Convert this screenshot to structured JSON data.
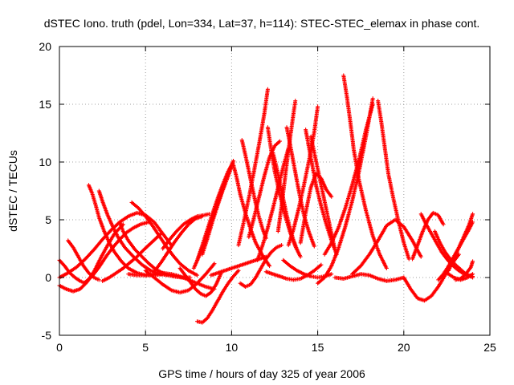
{
  "chart_data": {
    "type": "scatter",
    "title": "dSTEC Iono. truth (pdel, Lon=334, Lat=37, h=114): STEC-STEC_elemax in phase cont.",
    "xlabel": "GPS time / hours of day 325 of year 2006",
    "ylabel": "dSTEC  / TECUs",
    "xlim": [
      0,
      25
    ],
    "ylim": [
      -5,
      20
    ],
    "x_ticks": [
      0,
      5,
      10,
      15,
      20,
      25
    ],
    "y_ticks": [
      -5,
      0,
      5,
      10,
      15,
      20
    ],
    "x_tick_labels": [
      "0",
      "5",
      "10",
      "15",
      "20",
      "25"
    ],
    "y_tick_labels": [
      "-5",
      "0",
      "5",
      "10",
      "15",
      "20"
    ],
    "grid": true,
    "marker": "plus",
    "color": "#ff0000",
    "arcs": [
      {
        "x": [
          0.0,
          0.3,
          0.6,
          0.9,
          1.2,
          1.5
        ],
        "y": [
          1.5,
          1.0,
          0.4,
          0.0,
          -0.3,
          -0.5
        ]
      },
      {
        "x": [
          0.0,
          0.4,
          0.8,
          1.2,
          1.6,
          2.0,
          2.4,
          2.8,
          3.2,
          3.7
        ],
        "y": [
          -0.7,
          -1.0,
          -1.2,
          -1.0,
          -0.4,
          0.5,
          1.7,
          2.8,
          3.8,
          4.6
        ]
      },
      {
        "x": [
          0.0,
          0.5,
          1.0,
          1.5,
          2.0,
          2.5,
          3.0,
          3.5,
          4.0,
          4.5,
          5.0,
          5.5,
          6.0,
          6.5
        ],
        "y": [
          0.0,
          0.4,
          0.9,
          1.6,
          2.4,
          3.3,
          4.1,
          4.8,
          5.3,
          5.6,
          5.4,
          4.8,
          3.8,
          2.8
        ]
      },
      {
        "x": [
          0.5,
          0.8,
          1.1,
          1.4,
          1.7,
          2.0,
          2.3
        ],
        "y": [
          3.2,
          2.6,
          1.8,
          1.0,
          0.4,
          0.0,
          -0.2
        ]
      },
      {
        "x": [
          1.5,
          1.9,
          2.3,
          2.7,
          3.1,
          3.5,
          3.9,
          4.3,
          4.7,
          5.2
        ],
        "y": [
          -0.4,
          0.1,
          0.9,
          1.8,
          2.6,
          3.3,
          3.9,
          4.3,
          4.6,
          4.8
        ]
      },
      {
        "x": [
          1.7,
          1.9,
          2.1,
          2.3,
          2.6,
          2.9,
          3.2,
          3.6,
          4.0,
          4.5,
          5.0,
          5.5,
          6.0
        ],
        "y": [
          8.0,
          7.3,
          6.3,
          5.2,
          4.0,
          3.0,
          2.2,
          1.4,
          0.8,
          0.4,
          0.2,
          0.2,
          0.3
        ]
      },
      {
        "x": [
          2.3,
          2.5,
          2.8,
          3.1,
          3.4,
          3.8,
          4.3,
          4.8,
          5.3,
          5.8,
          6.3
        ],
        "y": [
          7.5,
          6.6,
          5.4,
          4.4,
          3.5,
          2.6,
          1.8,
          1.1,
          0.6,
          0.3,
          0.2
        ]
      },
      {
        "x": [
          2.5,
          2.9,
          3.3,
          3.7,
          4.1,
          4.5,
          4.9,
          5.4,
          5.9
        ],
        "y": [
          -0.3,
          0.0,
          0.4,
          0.8,
          1.3,
          1.8,
          2.4,
          3.1,
          3.8
        ]
      },
      {
        "x": [
          3.5,
          3.7,
          4.0,
          4.4,
          4.8,
          5.2,
          5.6,
          6.1,
          6.6,
          7.1,
          7.6
        ],
        "y": [
          4.8,
          4.0,
          3.2,
          2.4,
          1.8,
          1.2,
          0.7,
          0.3,
          0.1,
          0.0,
          0.0
        ]
      },
      {
        "x": [
          4.2,
          4.6,
          5.0,
          5.4,
          5.8,
          6.2,
          6.6,
          7.0,
          7.5,
          8.0
        ],
        "y": [
          6.5,
          6.0,
          5.3,
          4.5,
          3.6,
          2.7,
          1.9,
          1.2,
          0.6,
          0.2
        ]
      },
      {
        "x": [
          4.0,
          4.5,
          5.0,
          5.5,
          6.0,
          6.5,
          7.0,
          7.5,
          8.0,
          8.5,
          9.0
        ],
        "y": [
          0.3,
          0.2,
          0.2,
          0.3,
          0.4,
          0.3,
          0.1,
          -0.2,
          -0.5,
          -0.8,
          -1.0
        ]
      },
      {
        "x": [
          5.0,
          5.5,
          6.0,
          6.5,
          7.0,
          7.5,
          8.0,
          8.5,
          9.0
        ],
        "y": [
          0.6,
          0.0,
          -0.6,
          -1.1,
          -1.3,
          -1.1,
          -0.5,
          0.3,
          1.2
        ]
      },
      {
        "x": [
          5.5,
          5.9,
          6.3,
          6.7,
          7.1,
          7.5,
          7.9,
          8.3
        ],
        "y": [
          0.5,
          1.3,
          2.2,
          3.1,
          3.9,
          4.6,
          5.1,
          5.3
        ]
      },
      {
        "x": [
          6.0,
          6.4,
          6.8,
          7.2,
          7.6,
          8.0,
          8.4,
          8.7
        ],
        "y": [
          2.5,
          3.3,
          4.0,
          4.6,
          5.0,
          5.3,
          5.4,
          5.5
        ]
      },
      {
        "x": [
          7.0,
          7.3,
          7.6,
          7.9,
          8.2,
          8.5,
          8.8,
          9.1,
          9.4
        ],
        "y": [
          0.8,
          0.2,
          -0.4,
          -1.0,
          -1.4,
          -1.6,
          -1.3,
          -0.6,
          0.4
        ]
      },
      {
        "x": [
          8.0,
          8.3,
          8.6,
          8.9,
          9.2,
          9.5,
          9.8,
          10.1,
          10.4
        ],
        "y": [
          -3.8,
          -3.9,
          -3.5,
          -2.8,
          -2.0,
          -1.2,
          -0.5,
          0.1,
          0.6
        ]
      },
      {
        "x": [
          7.8,
          8.1,
          8.4,
          8.7,
          9.0,
          9.3,
          9.6,
          9.9,
          10.1
        ],
        "y": [
          0.8,
          1.8,
          3.0,
          4.3,
          5.6,
          6.9,
          8.2,
          9.4,
          10.1
        ]
      },
      {
        "x": [
          8.0,
          8.3,
          8.6,
          8.9,
          9.2,
          9.5,
          9.8,
          10.1
        ],
        "y": [
          1.5,
          2.8,
          4.2,
          5.6,
          6.9,
          8.1,
          9.2,
          10.0
        ]
      },
      {
        "x": [
          8.3,
          8.6,
          8.9,
          9.2,
          9.5,
          9.8,
          10.0
        ],
        "y": [
          2.0,
          3.4,
          4.9,
          6.3,
          7.6,
          8.8,
          9.6
        ]
      },
      {
        "x": [
          10.1,
          10.3,
          10.5,
          10.8,
          11.1,
          11.4,
          11.8,
          12.2
        ],
        "y": [
          9.8,
          8.6,
          7.2,
          5.6,
          4.2,
          3.0,
          1.9,
          1.0
        ]
      },
      {
        "x": [
          8.8,
          9.2,
          9.6,
          10.0,
          10.4,
          10.8,
          11.2,
          11.6,
          12.0
        ],
        "y": [
          0.2,
          0.4,
          0.6,
          0.8,
          1.0,
          1.2,
          1.4,
          1.6,
          1.8
        ]
      },
      {
        "x": [
          10.5,
          10.8,
          11.1,
          11.4,
          11.7,
          12.0,
          12.3,
          12.6,
          12.9
        ],
        "y": [
          -0.5,
          -0.8,
          -0.6,
          0.0,
          0.8,
          1.6,
          2.2,
          2.6,
          2.8
        ]
      },
      {
        "x": [
          10.6,
          10.8,
          11.0,
          11.2,
          11.4,
          11.6,
          11.8,
          12.0
        ],
        "y": [
          11.9,
          10.6,
          9.2,
          7.8,
          6.4,
          5.2,
          4.2,
          3.4
        ]
      },
      {
        "x": [
          10.4,
          10.7,
          11.0,
          11.3,
          11.6,
          11.9,
          12.1
        ],
        "y": [
          2.8,
          4.8,
          6.9,
          9.2,
          11.6,
          14.2,
          16.3
        ]
      },
      {
        "x": [
          11.0,
          11.3,
          11.6,
          11.9,
          12.2,
          12.5,
          12.8
        ],
        "y": [
          3.5,
          5.2,
          7.0,
          8.8,
          10.4,
          11.4,
          11.8
        ]
      },
      {
        "x": [
          12.1,
          12.3,
          12.5,
          12.8,
          13.1,
          13.4,
          13.7,
          14.0
        ],
        "y": [
          13.0,
          11.0,
          9.2,
          7.2,
          5.4,
          3.9,
          2.7,
          1.8
        ]
      },
      {
        "x": [
          11.5,
          11.8,
          12.1,
          12.4,
          12.7,
          13.0,
          13.3
        ],
        "y": [
          1.5,
          2.8,
          4.3,
          6.0,
          7.8,
          9.6,
          11.2
        ]
      },
      {
        "x": [
          12.4,
          12.6,
          12.8,
          13.0,
          13.2,
          13.4,
          13.6,
          13.8
        ],
        "y": [
          10.8,
          9.6,
          8.2,
          6.8,
          5.4,
          4.2,
          3.2,
          2.4
        ]
      },
      {
        "x": [
          12.7,
          12.9,
          13.1,
          13.3,
          13.5,
          13.7
        ],
        "y": [
          4.0,
          6.2,
          8.6,
          11.0,
          13.2,
          15.3
        ]
      },
      {
        "x": [
          13.2,
          13.4,
          13.6,
          13.8,
          14.0,
          14.2,
          14.5,
          14.8
        ],
        "y": [
          13.0,
          11.5,
          9.9,
          8.3,
          6.8,
          5.4,
          3.9,
          2.7
        ]
      },
      {
        "x": [
          12.0,
          12.4,
          12.8,
          13.2,
          13.6,
          14.0,
          14.4,
          14.8,
          15.2
        ],
        "y": [
          0.5,
          0.3,
          0.1,
          -0.1,
          -0.2,
          -0.1,
          0.2,
          0.6,
          1.1
        ]
      },
      {
        "x": [
          13.0,
          13.4,
          13.8,
          14.2,
          14.6,
          15.0,
          15.4,
          15.8
        ],
        "y": [
          1.5,
          1.0,
          0.6,
          0.3,
          0.1,
          0.0,
          0.1,
          0.3
        ]
      },
      {
        "x": [
          13.3,
          13.6,
          13.9,
          14.2,
          14.5,
          14.8,
          15.0
        ],
        "y": [
          2.8,
          4.2,
          6.0,
          8.0,
          10.2,
          12.6,
          14.8
        ]
      },
      {
        "x": [
          14.3,
          14.5,
          14.7,
          14.9,
          15.2,
          15.5,
          15.8,
          16.1
        ],
        "y": [
          12.8,
          11.2,
          9.6,
          8.0,
          6.2,
          4.6,
          3.2,
          2.0
        ]
      },
      {
        "x": [
          14.6,
          14.8,
          15.0,
          15.2,
          15.4,
          15.6,
          15.8,
          16.0
        ],
        "y": [
          12.2,
          10.8,
          9.4,
          8.0,
          6.6,
          5.2,
          3.8,
          2.4
        ]
      },
      {
        "x": [
          14.0,
          14.3,
          14.6,
          14.9,
          15.2,
          15.5,
          15.8
        ],
        "y": [
          3.0,
          5.6,
          7.8,
          9.0,
          8.6,
          7.6,
          7.0
        ]
      },
      {
        "x": [
          15.0,
          15.4,
          15.8,
          16.2,
          16.6,
          17.0,
          17.4,
          17.8,
          18.2
        ],
        "y": [
          -0.5,
          0.0,
          1.0,
          2.5,
          4.4,
          6.6,
          9.2,
          12.2,
          15.5
        ]
      },
      {
        "x": [
          16.5,
          16.7,
          16.9,
          17.1,
          17.4,
          17.8,
          18.2,
          18.6,
          19.0
        ],
        "y": [
          17.5,
          15.6,
          13.4,
          11.0,
          8.4,
          5.8,
          3.6,
          2.0,
          0.8
        ]
      },
      {
        "x": [
          15.4,
          15.8,
          16.2,
          16.6,
          17.0,
          17.4,
          17.8,
          18.2
        ],
        "y": [
          2.0,
          3.0,
          4.3,
          6.0,
          8.0,
          10.2,
          12.8,
          15.0
        ]
      },
      {
        "x": [
          18.5,
          18.7,
          18.9,
          19.1,
          19.4,
          19.7,
          20.0,
          20.3
        ],
        "y": [
          15.3,
          13.4,
          11.2,
          9.0,
          6.8,
          4.8,
          3.0,
          1.6
        ]
      },
      {
        "x": [
          16.0,
          16.5,
          17.0,
          17.5,
          18.0,
          18.5,
          19.0,
          19.5,
          20.0
        ],
        "y": [
          0.0,
          -0.1,
          0.1,
          0.3,
          0.2,
          -0.1,
          -0.3,
          -0.2,
          0.0
        ]
      },
      {
        "x": [
          17.0,
          17.5,
          18.0,
          18.5,
          19.0,
          19.5,
          20.0,
          20.5,
          21.0
        ],
        "y": [
          0.3,
          1.0,
          2.0,
          3.2,
          4.5,
          5.0,
          4.4,
          3.2,
          1.8
        ]
      },
      {
        "x": [
          20.0,
          20.4,
          20.8,
          21.2,
          21.6,
          22.0,
          22.4,
          22.8,
          23.2
        ],
        "y": [
          0.0,
          -1.0,
          -1.8,
          -2.0,
          -1.6,
          -0.8,
          0.2,
          1.2,
          2.0
        ]
      },
      {
        "x": [
          20.5,
          20.8,
          21.1,
          21.4,
          21.7,
          22.0,
          22.3
        ],
        "y": [
          1.6,
          2.8,
          4.0,
          5.0,
          5.6,
          5.4,
          4.6
        ]
      },
      {
        "x": [
          21.0,
          21.3,
          21.6,
          21.9,
          22.2,
          22.5,
          22.8,
          23.1,
          23.4,
          23.7,
          24.0
        ],
        "y": [
          5.5,
          4.6,
          3.8,
          3.0,
          2.2,
          1.6,
          1.1,
          0.7,
          0.4,
          0.2,
          0.1
        ]
      },
      {
        "x": [
          21.8,
          22.1,
          22.4,
          22.7,
          23.0,
          23.3,
          23.6,
          24.0
        ],
        "y": [
          4.0,
          3.0,
          2.2,
          1.6,
          1.1,
          0.7,
          0.3,
          0.0
        ]
      },
      {
        "x": [
          22.0,
          22.3,
          22.6,
          22.9,
          23.2,
          23.5,
          23.8,
          24.0
        ],
        "y": [
          -0.2,
          0.3,
          1.0,
          1.8,
          2.6,
          3.4,
          4.2,
          4.8
        ]
      },
      {
        "x": [
          22.6,
          22.9,
          23.2,
          23.5,
          23.8,
          24.0
        ],
        "y": [
          0.6,
          1.6,
          2.6,
          3.6,
          4.6,
          5.5
        ]
      },
      {
        "x": [
          22.5,
          22.9,
          23.3,
          23.7,
          24.0
        ],
        "y": [
          0.4,
          0.0,
          -0.2,
          0.0,
          0.3
        ]
      },
      {
        "x": [
          23.0,
          23.3,
          23.6,
          23.9,
          24.0
        ],
        "y": [
          -0.2,
          -0.1,
          0.3,
          0.9,
          1.4
        ]
      }
    ]
  }
}
